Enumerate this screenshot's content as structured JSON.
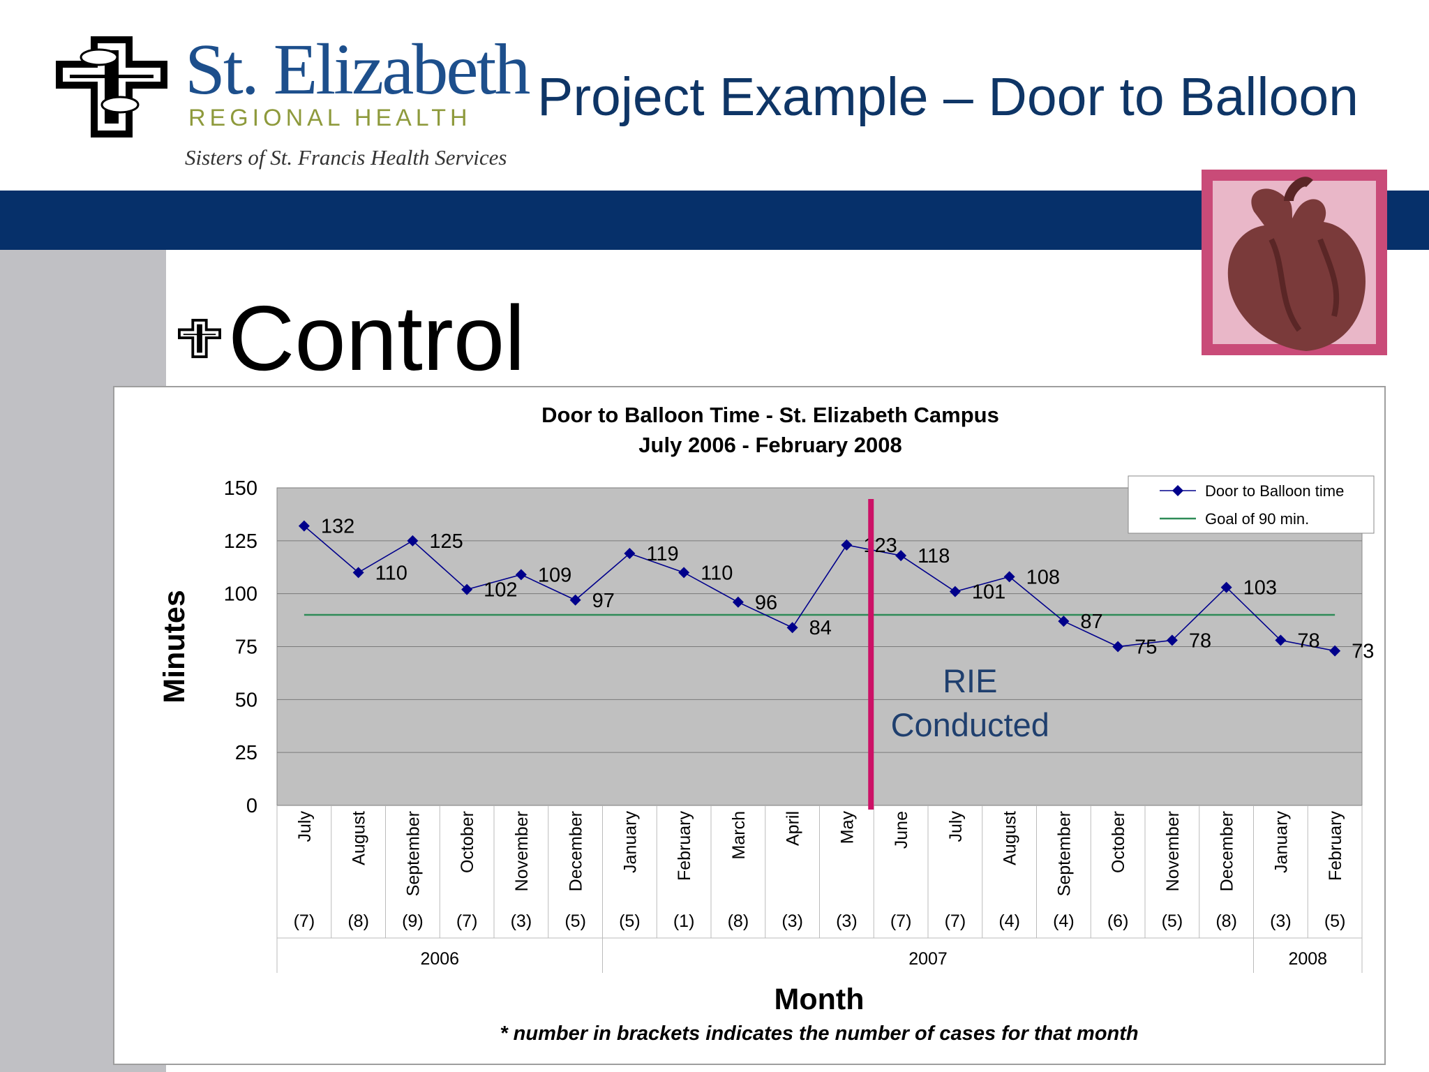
{
  "header": {
    "logo_name": "St. Elizabeth",
    "logo_subtitle": "REGIONAL HEALTH",
    "logo_tagline": "Sisters of St. Francis Health Services",
    "title": "Project Example – Door to Balloon"
  },
  "section": {
    "heading": "Control"
  },
  "colors": {
    "navy_band": "#06306a",
    "title_text": "#0e3566",
    "gray_sidebar": "#c0c0c4",
    "plot_background": "#c0c0c0",
    "series_line": "#00008b",
    "goal_line": "#2e8b57",
    "marker_line": "#cc1166",
    "annotation_text": "#1f3f6e",
    "heart_frame": "#c94b78",
    "heart_inner": "#e9b7c8",
    "heart": "#7a3a3a"
  },
  "icons": [
    "cross-hands-logo-icon",
    "cross-bullet-icon",
    "heart-icon"
  ],
  "chart_data": {
    "type": "line",
    "title": "Door to Balloon Time - St. Elizabeth Campus",
    "subtitle": "July 2006 - February 2008",
    "ylabel": "Minutes",
    "xlabel": "Month",
    "footnote": "* number in brackets indicates the number of cases for that month",
    "ylim": [
      0,
      150
    ],
    "yticks": [
      0,
      25,
      50,
      75,
      100,
      125,
      150
    ],
    "grid": true,
    "legend": "top-right",
    "categories": [
      "July",
      "August",
      "September",
      "October",
      "November",
      "December",
      "January",
      "February",
      "March",
      "April",
      "May",
      "June",
      "July",
      "August",
      "September",
      "October",
      "November",
      "December",
      "January",
      "February"
    ],
    "case_counts": [
      "(7)",
      "(8)",
      "(9)",
      "(7)",
      "(3)",
      "(5)",
      "(5)",
      "(1)",
      "(8)",
      "(3)",
      "(3)",
      "(7)",
      "(7)",
      "(4)",
      "(4)",
      "(6)",
      "(5)",
      "(8)",
      "(3)",
      "(5)"
    ],
    "years": [
      {
        "label": "2006",
        "start": 0,
        "end": 5
      },
      {
        "label": "2007",
        "start": 6,
        "end": 17
      },
      {
        "label": "2008",
        "start": 18,
        "end": 19
      }
    ],
    "series": [
      {
        "name": "Door to Balloon time",
        "values": [
          132,
          110,
          125,
          102,
          109,
          97,
          119,
          110,
          96,
          84,
          123,
          118,
          101,
          108,
          87,
          75,
          78,
          103,
          78,
          73
        ]
      },
      {
        "name": "Goal of 90 min.",
        "values": [
          90,
          90,
          90,
          90,
          90,
          90,
          90,
          90,
          90,
          90,
          90,
          90,
          90,
          90,
          90,
          90,
          90,
          90,
          90,
          90
        ]
      }
    ],
    "annotation": {
      "line1": "RIE",
      "line2": "Conducted",
      "after_category_index": 10
    }
  }
}
